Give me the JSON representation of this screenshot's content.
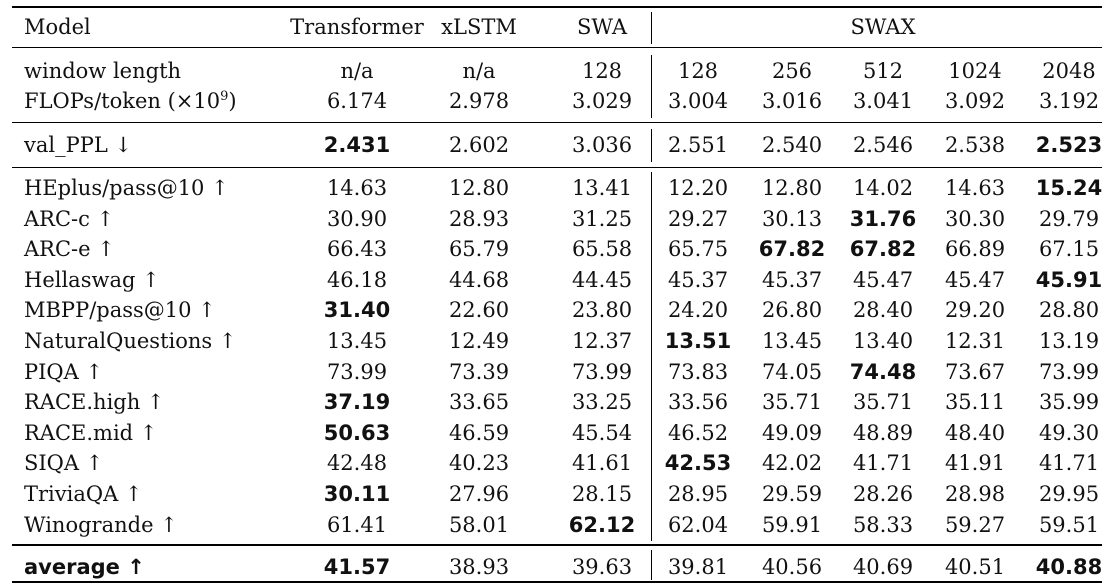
{
  "table": {
    "headers": [
      "Model",
      "Transformer",
      "xLSTM",
      "SWA",
      "SWAX"
    ],
    "config_rows": [
      {
        "label": "window length",
        "values": [
          "n/a",
          "n/a",
          "128",
          "128",
          "256",
          "512",
          "1024",
          "2048"
        ]
      },
      {
        "label": "FLOPs/token (×10",
        "label_sup": "9",
        "label_suffix": ")",
        "values": [
          "6.174",
          "2.978",
          "3.029",
          "3.004",
          "3.016",
          "3.041",
          "3.092",
          "3.192"
        ]
      }
    ],
    "val_row": {
      "label": "val_PPL ↓",
      "values": [
        "2.431",
        "2.602",
        "3.036",
        "2.551",
        "2.540",
        "2.546",
        "2.538",
        "2.523"
      ],
      "bold": [
        true,
        false,
        false,
        false,
        false,
        false,
        false,
        true
      ]
    },
    "bench_rows": [
      {
        "label": "HEplus/pass@10 ↑",
        "values": [
          "14.63",
          "12.80",
          "13.41",
          "12.20",
          "12.80",
          "14.02",
          "14.63",
          "15.24"
        ],
        "bold": [
          false,
          false,
          false,
          false,
          false,
          false,
          false,
          true
        ]
      },
      {
        "label": "ARC-c ↑",
        "values": [
          "30.90",
          "28.93",
          "31.25",
          "29.27",
          "30.13",
          "31.76",
          "30.30",
          "29.79"
        ],
        "bold": [
          false,
          false,
          false,
          false,
          false,
          true,
          false,
          false
        ]
      },
      {
        "label": "ARC-e ↑",
        "values": [
          "66.43",
          "65.79",
          "65.58",
          "65.75",
          "67.82",
          "67.82",
          "66.89",
          "67.15"
        ],
        "bold": [
          false,
          false,
          false,
          false,
          true,
          true,
          false,
          false
        ]
      },
      {
        "label": "Hellaswag ↑",
        "values": [
          "46.18",
          "44.68",
          "44.45",
          "45.37",
          "45.37",
          "45.47",
          "45.47",
          "45.91"
        ],
        "bold": [
          false,
          false,
          false,
          false,
          false,
          false,
          false,
          true
        ]
      },
      {
        "label": "MBPP/pass@10 ↑",
        "values": [
          "31.40",
          "22.60",
          "23.80",
          "24.20",
          "26.80",
          "28.40",
          "29.20",
          "28.80"
        ],
        "bold": [
          true,
          false,
          false,
          false,
          false,
          false,
          false,
          false
        ]
      },
      {
        "label": "NaturalQuestions ↑",
        "values": [
          "13.45",
          "12.49",
          "12.37",
          "13.51",
          "13.45",
          "13.40",
          "12.31",
          "13.19"
        ],
        "bold": [
          false,
          false,
          false,
          true,
          false,
          false,
          false,
          false
        ]
      },
      {
        "label": "PIQA ↑",
        "values": [
          "73.99",
          "73.39",
          "73.99",
          "73.83",
          "74.05",
          "74.48",
          "73.67",
          "73.99"
        ],
        "bold": [
          false,
          false,
          false,
          false,
          false,
          true,
          false,
          false
        ]
      },
      {
        "label": "RACE.high ↑",
        "values": [
          "37.19",
          "33.65",
          "33.25",
          "33.56",
          "35.71",
          "35.71",
          "35.11",
          "35.99"
        ],
        "bold": [
          true,
          false,
          false,
          false,
          false,
          false,
          false,
          false
        ]
      },
      {
        "label": "RACE.mid ↑",
        "values": [
          "50.63",
          "46.59",
          "45.54",
          "46.52",
          "49.09",
          "48.89",
          "48.40",
          "49.30"
        ],
        "bold": [
          true,
          false,
          false,
          false,
          false,
          false,
          false,
          false
        ]
      },
      {
        "label": "SIQA ↑",
        "values": [
          "42.48",
          "40.23",
          "41.61",
          "42.53",
          "42.02",
          "41.71",
          "41.91",
          "41.71"
        ],
        "bold": [
          false,
          false,
          false,
          true,
          false,
          false,
          false,
          false
        ]
      },
      {
        "label": "TriviaQA ↑",
        "values": [
          "30.11",
          "27.96",
          "28.15",
          "28.95",
          "29.59",
          "28.26",
          "28.98",
          "29.95"
        ],
        "bold": [
          true,
          false,
          false,
          false,
          false,
          false,
          false,
          false
        ]
      },
      {
        "label": "Winogrande ↑",
        "values": [
          "61.41",
          "58.01",
          "62.12",
          "62.04",
          "59.91",
          "58.33",
          "59.27",
          "59.51"
        ],
        "bold": [
          false,
          false,
          true,
          false,
          false,
          false,
          false,
          false
        ]
      }
    ],
    "avg_row": {
      "label": "average ↑",
      "label_bold": true,
      "values": [
        "41.57",
        "38.93",
        "39.63",
        "39.81",
        "40.56",
        "40.69",
        "40.51",
        "40.88"
      ],
      "bold": [
        true,
        false,
        false,
        false,
        false,
        false,
        false,
        true
      ]
    }
  }
}
